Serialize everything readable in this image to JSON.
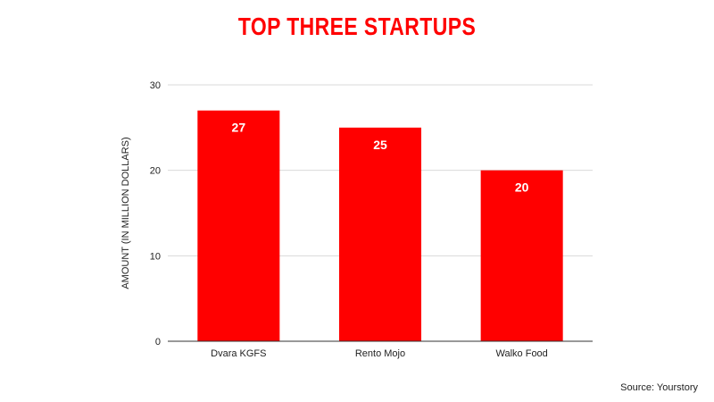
{
  "chart_data": {
    "type": "bar",
    "title": "TOP THREE STARTUPS",
    "categories": [
      "Dvara KGFS",
      "Rento Mojo",
      "Walko Food"
    ],
    "values": [
      27,
      25,
      20
    ],
    "data_labels": [
      "27",
      "25",
      "20"
    ],
    "ylabel": "AMOUNT (IN MILLION DOLLARS)",
    "xlabel": "",
    "ylim": [
      0,
      30
    ],
    "yticks": [
      0,
      10,
      20,
      30
    ],
    "grid": true,
    "legend": "none",
    "bar_color": "#ff0000",
    "title_color": "#ff0000"
  },
  "source": "Source: Yourstory"
}
